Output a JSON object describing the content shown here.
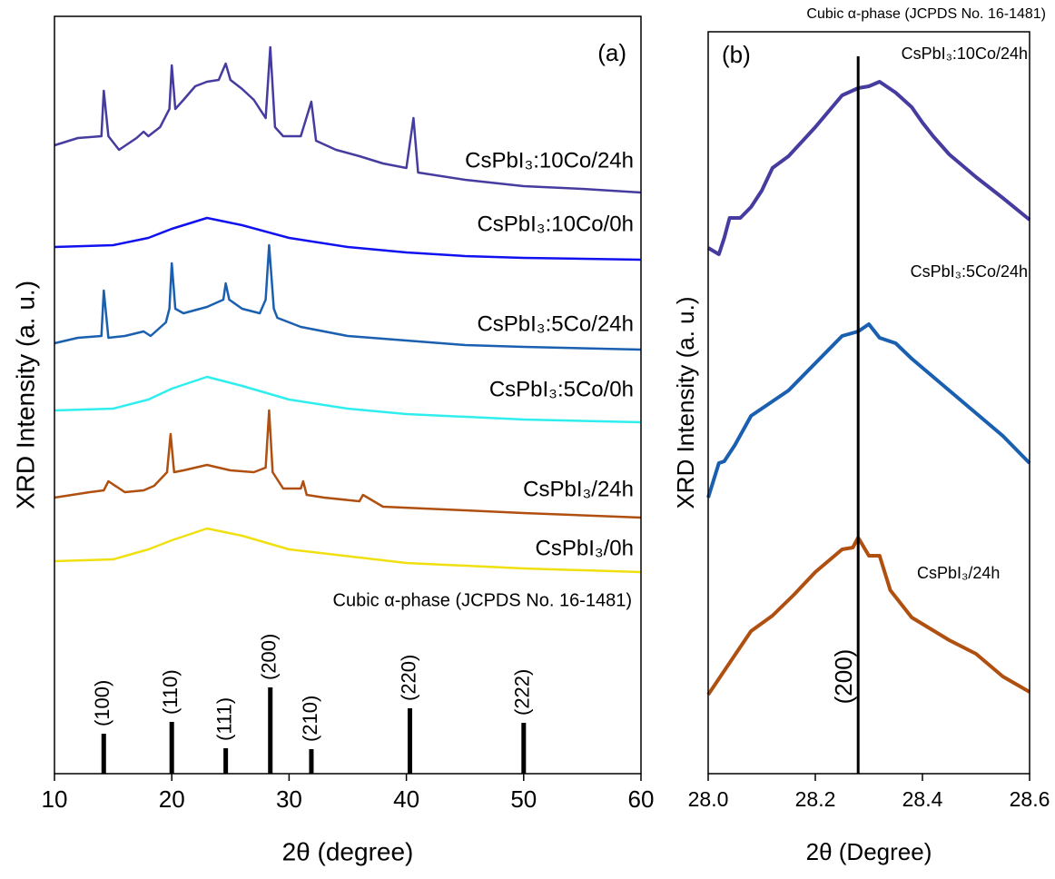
{
  "chart_data": [
    {
      "type": "line",
      "panel": "(a)",
      "xlabel": "2θ (degree)",
      "ylabel": "XRD Intensity (a. u.)",
      "xlim": [
        10,
        60
      ],
      "xticks": [
        10,
        20,
        30,
        40,
        50,
        60
      ],
      "ylim": [
        0,
        834
      ],
      "series": [
        {
          "name": "CsPbI₃:10Co/24h",
          "color": "#463ca0",
          "x": [
            10,
            12,
            14,
            14.2,
            14.6,
            15.5,
            17,
            17.6,
            18,
            19,
            19.8,
            20,
            20.3,
            21,
            22,
            23,
            24,
            24.6,
            25,
            26,
            27,
            28,
            28.4,
            28.8,
            29.5,
            31,
            31.9,
            32.3,
            34,
            36,
            38,
            40,
            40.6,
            41,
            45,
            50,
            55,
            60
          ],
          "values": [
            692,
            700,
            702,
            752,
            702,
            687,
            700,
            707,
            702,
            712,
            732,
            780,
            732,
            742,
            757,
            762,
            764,
            782,
            764,
            754,
            742,
            722,
            800,
            712,
            702,
            702,
            740,
            697,
            687,
            680,
            672,
            667,
            722,
            662,
            654,
            647,
            644,
            640
          ]
        },
        {
          "name": "CsPbI₃:10Co/0h",
          "color": "#1010f0",
          "x": [
            10,
            15,
            18,
            20,
            23,
            26,
            30,
            35,
            40,
            45,
            50,
            60
          ],
          "values": [
            580,
            582,
            590,
            600,
            612,
            604,
            590,
            580,
            574,
            570,
            568,
            566
          ]
        },
        {
          "name": "CsPbI₃:5Co/24h",
          "color": "#1a5fb0",
          "x": [
            10,
            12,
            14,
            14.2,
            14.6,
            16,
            17.6,
            18.2,
            19.5,
            19.8,
            20,
            20.3,
            21,
            23,
            24.4,
            24.6,
            24.9,
            26,
            27.5,
            28,
            28.3,
            28.7,
            29,
            31,
            35,
            40,
            45,
            50,
            60
          ],
          "values": [
            474,
            480,
            482,
            532,
            480,
            482,
            487,
            482,
            497,
            512,
            562,
            512,
            507,
            514,
            522,
            540,
            522,
            512,
            507,
            522,
            582,
            512,
            502,
            492,
            482,
            477,
            472,
            470,
            467
          ]
        },
        {
          "name": "CsPbI₃:5Co/0h",
          "color": "#30eeee",
          "x": [
            10,
            15,
            18,
            20,
            23,
            26,
            30,
            35,
            40,
            50,
            60
          ],
          "values": [
            400,
            402,
            412,
            424,
            437,
            427,
            412,
            402,
            396,
            390,
            387
          ]
        },
        {
          "name": "CsPbI₃/24h",
          "color": "#b05010",
          "x": [
            10,
            13,
            14.2,
            14.6,
            16,
            17.6,
            18.5,
            19.6,
            19.9,
            20.2,
            21,
            23,
            25,
            27,
            28,
            28.3,
            28.6,
            29.5,
            31,
            31.2,
            31.5,
            33,
            36,
            36.3,
            38,
            45,
            50,
            60
          ],
          "values": [
            304,
            310,
            312,
            322,
            310,
            312,
            317,
            332,
            374,
            332,
            334,
            340,
            334,
            332,
            337,
            400,
            332,
            314,
            314,
            322,
            307,
            304,
            300,
            307,
            294,
            290,
            287,
            282
          ]
        },
        {
          "name": "CsPbI₃/0h",
          "color": "#f0e010",
          "x": [
            10,
            15,
            18,
            20,
            23,
            26,
            30,
            40,
            50,
            60
          ],
          "values": [
            234,
            236,
            247,
            257,
            270,
            262,
            247,
            232,
            226,
            222
          ]
        }
      ],
      "reference": {
        "name": "Cubic α-phase (JCPDS No. 16-1481)",
        "x": [
          14.2,
          20,
          24.6,
          28.4,
          31.9,
          40.3,
          50
        ],
        "values": [
          44,
          57,
          28,
          95,
          27,
          72,
          56
        ],
        "labels": [
          "(100)",
          "(110)",
          "(111)",
          "(200)",
          "(210)",
          "(220)",
          "(222)"
        ]
      }
    },
    {
      "type": "line",
      "panel": "(b)",
      "title": "Cubic α-phase (JCPDS No. 16-1481)",
      "xlabel": "2θ (Degree)",
      "ylabel": "XRD Intensity (a. u.)",
      "xlim": [
        28.0,
        28.6
      ],
      "xticks": [
        {
          "value": 28,
          "label": "28.0"
        },
        28.2,
        28.4,
        28.6
      ],
      "ylim": [
        0,
        817
      ],
      "series": [
        {
          "name": "CsPbI₃:10Co/24h",
          "color": "#463ca0",
          "x": [
            28.0,
            28.02,
            28.03,
            28.04,
            28.06,
            28.08,
            28.1,
            28.12,
            28.15,
            28.2,
            28.25,
            28.28,
            28.3,
            28.32,
            28.35,
            28.38,
            28.4,
            28.42,
            28.45,
            28.5,
            28.55,
            28.6
          ],
          "values": [
            579,
            572,
            590,
            612,
            612,
            624,
            642,
            667,
            680,
            712,
            747,
            755,
            757,
            762,
            750,
            734,
            717,
            702,
            682,
            657,
            634,
            610
          ]
        },
        {
          "name": "CsPbI₃:5Co/24h",
          "color": "#1a5fb0",
          "x": [
            28.0,
            28.02,
            28.03,
            28.05,
            28.08,
            28.1,
            28.15,
            28.2,
            28.25,
            28.28,
            28.3,
            28.32,
            28.35,
            28.38,
            28.4,
            28.45,
            28.5,
            28.55,
            28.6
          ],
          "values": [
            304,
            342,
            344,
            362,
            394,
            402,
            422,
            452,
            482,
            487,
            495,
            480,
            474,
            457,
            447,
            422,
            397,
            372,
            342
          ]
        },
        {
          "name": "CsPbI₃/24h",
          "color": "#b05010",
          "x": [
            28.0,
            28.04,
            28.08,
            28.12,
            28.16,
            28.2,
            28.25,
            28.27,
            28.28,
            28.3,
            28.32,
            28.34,
            28.38,
            28.45,
            28.5,
            28.55,
            28.6
          ],
          "values": [
            87,
            122,
            157,
            174,
            197,
            222,
            247,
            249,
            260,
            240,
            240,
            202,
            172,
            147,
            132,
            107,
            90
          ]
        }
      ],
      "marker": {
        "x": 28.28,
        "label": "(200)"
      }
    }
  ]
}
